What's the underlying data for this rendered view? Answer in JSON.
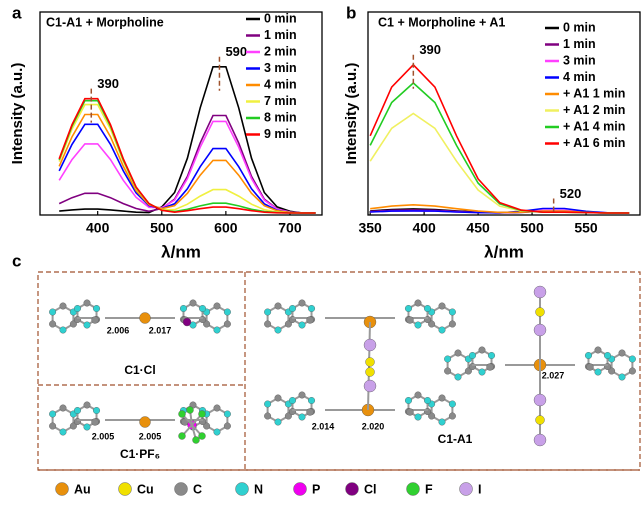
{
  "chart_data": [
    {
      "type": "line",
      "title": "C1-A1 + Morpholine",
      "xlabel": "λ/nm",
      "ylabel": "Intensity (a.u.)",
      "x": [
        340,
        360,
        380,
        400,
        420,
        440,
        460,
        480,
        500,
        520,
        540,
        560,
        580,
        600,
        620,
        640,
        660,
        680,
        700,
        720,
        740
      ],
      "xlim": [
        310,
        750
      ],
      "xticks": [
        400,
        500,
        600,
        700
      ],
      "ylim": [
        0,
        100
      ],
      "annotations": [
        390,
        590
      ],
      "annotation_color": "#a0522d",
      "series": [
        {
          "name": "0 min",
          "color": "#000000",
          "values": [
            1.9,
            2.5,
            2.9,
            2.9,
            2.5,
            1.9,
            1.4,
            1.2,
            4.0,
            11.1,
            28,
            52.8,
            73,
            73,
            52.8,
            28,
            11.1,
            4,
            1.8,
            1,
            1
          ]
        },
        {
          "name": "1 min",
          "color": "#800080",
          "values": [
            5.6,
            8.5,
            10.7,
            10.7,
            8.5,
            5.6,
            3.2,
            1.8,
            3.2,
            7.8,
            19,
            35.5,
            49,
            49,
            35.5,
            19,
            7.8,
            3,
            1.5,
            1,
            1
          ]
        },
        {
          "name": "2 min",
          "color": "#ff40ff",
          "values": [
            17.1,
            27.3,
            35,
            35,
            27.3,
            17.1,
            8.7,
            3.8,
            3.6,
            7.3,
            17.9,
            33.4,
            46.1,
            46.1,
            33.4,
            17.9,
            7.3,
            2.9,
            1.5,
            1,
            1
          ]
        },
        {
          "name": "3 min",
          "color": "#0000ff",
          "values": [
            21.7,
            34.8,
            44.7,
            44.7,
            34.8,
            21.7,
            10.9,
            4.6,
            3.2,
            5.5,
            12.9,
            23.8,
            32.7,
            32.7,
            23.8,
            12.9,
            5.5,
            2.3,
            1.3,
            1,
            1
          ]
        },
        {
          "name": "4 min",
          "color": "#ff8c00",
          "values": [
            24,
            38.5,
            49.5,
            49.5,
            38.5,
            24,
            12,
            5,
            3.1,
            4.6,
            10.7,
            19.6,
            26.9,
            26.9,
            19.6,
            10.7,
            4.6,
            2.1,
            1.3,
            1,
            1
          ]
        },
        {
          "name": "7 min",
          "color": "#f0f040",
          "values": [
            26.3,
            42.3,
            54.4,
            54.4,
            42.3,
            26.3,
            13.1,
            5.4,
            2.6,
            2.6,
            5.3,
            9.3,
            12.5,
            12.5,
            9.3,
            5.3,
            2.6,
            1.5,
            1.1,
            1,
            1
          ]
        },
        {
          "name": "8 min",
          "color": "#22cc22",
          "values": [
            27.2,
            43.8,
            56.3,
            56.3,
            43.8,
            27.2,
            13.5,
            5.6,
            2.3,
            1.7,
            2.8,
            4.5,
            5.8,
            5.8,
            4.5,
            2.8,
            1.7,
            1.2,
            1,
            1,
            1
          ]
        },
        {
          "name": "9 min",
          "color": "#ff0000",
          "values": [
            27.7,
            44.5,
            57.3,
            57.3,
            44.5,
            27.7,
            13.8,
            5.6,
            2.3,
            1.4,
            2.1,
            3.1,
            3.9,
            3.9,
            3.1,
            2.1,
            1.4,
            1.1,
            1,
            1,
            1
          ]
        }
      ]
    },
    {
      "type": "line",
      "title": "C1 + Morpholine + A1",
      "xlabel": "λ/nm",
      "ylabel": "Intensity (a.u.)",
      "x": [
        350,
        370,
        390,
        410,
        430,
        450,
        470,
        490,
        510,
        530,
        550,
        570,
        590
      ],
      "xlim": [
        348,
        600
      ],
      "xticks": [
        350,
        400,
        450,
        500,
        550
      ],
      "ylim": [
        0,
        100
      ],
      "annotations": [
        390,
        520
      ],
      "annotation_color": "#a0522d",
      "series": [
        {
          "name": "0 min",
          "color": "#000000",
          "values": [
            2,
            2.7,
            3,
            2.7,
            2,
            1.5,
            1.2,
            1.4,
            1.9,
            1.9,
            1.3,
            1,
            1
          ]
        },
        {
          "name": "1 min",
          "color": "#800080",
          "values": [
            1.8,
            2.3,
            2.5,
            2.3,
            1.8,
            1.3,
            1.1,
            1.3,
            1.9,
            1.9,
            1.3,
            1,
            1
          ]
        },
        {
          "name": "3 min",
          "color": "#ff40ff",
          "values": [
            1.5,
            1.9,
            2,
            1.9,
            1.5,
            1.2,
            1.1,
            1.5,
            2.3,
            2.3,
            1.5,
            1.1,
            1
          ]
        },
        {
          "name": "4 min",
          "color": "#0000ff",
          "values": [
            1.5,
            1.9,
            2,
            1.9,
            1.5,
            1.2,
            1.1,
            1.8,
            3.2,
            3.2,
            1.8,
            1.1,
            1
          ]
        },
        {
          "name": "+ A1 1 min",
          "color": "#ff8c00",
          "values": [
            3.1,
            4.4,
            5,
            4.4,
            3.1,
            1.9,
            1.3,
            1.4,
            1.9,
            1.9,
            1.3,
            1,
            1
          ]
        },
        {
          "name": "+ A1 2 min",
          "color": "#f0f060",
          "values": [
            26.5,
            42.7,
            50,
            42.7,
            26.5,
            12.3,
            4.4,
            2,
            1.4,
            1.4,
            1.2,
            1,
            1
          ]
        },
        {
          "name": "+ A1 4 min",
          "color": "#22cc22",
          "values": [
            34.3,
            55.4,
            65,
            55.4,
            34.3,
            15.7,
            5.5,
            2.2,
            1.4,
            1.4,
            1.2,
            1,
            1
          ]
        },
        {
          "name": "+ A1 6 min",
          "color": "#ff0000",
          "values": [
            39,
            63,
            74,
            63,
            39,
            17.8,
            6.1,
            2.4,
            1.4,
            1.4,
            1.2,
            1,
            1
          ]
        }
      ]
    }
  ],
  "panel_labels": [
    "a",
    "b",
    "c"
  ],
  "structures": {
    "names": [
      "C1·Cl",
      "C1·PF₆",
      "C1-A1"
    ],
    "bond_lengths": [
      "2.006",
      "2.017",
      "2.005",
      "2.005",
      "2.014",
      "2.020",
      "2.027"
    ],
    "legend": [
      {
        "name": "Au",
        "color": "#e8900c"
      },
      {
        "name": "Cu",
        "color": "#f0e000"
      },
      {
        "name": "C",
        "color": "#8a8a8a"
      },
      {
        "name": "N",
        "color": "#30d0d0"
      },
      {
        "name": "P",
        "color": "#f000f0"
      },
      {
        "name": "Cl",
        "color": "#800080"
      },
      {
        "name": "F",
        "color": "#30d030"
      },
      {
        "name": "I",
        "color": "#c8a0e8"
      }
    ]
  }
}
